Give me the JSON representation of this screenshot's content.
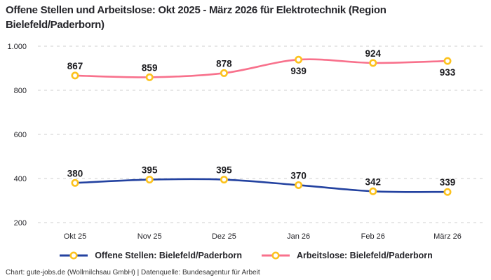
{
  "title": "Offene Stellen und Arbeitslose: Okt 2025 - März 2026 für Elektrotechnik (Region Bielefeld/Paderborn)",
  "footer": "Chart: gute-jobs.de (Wollmilchsau GmbH) | Datenquelle: Bundesagentur für Arbeit",
  "colors": {
    "marker_ring": "#FCC21D",
    "marker_fill": "#FFFFFF",
    "grid": "#CFCFCF",
    "open_positions_line": "#2342A0",
    "unemployed_line": "#F8718C"
  },
  "chart_data": {
    "type": "line",
    "title": "Offene Stellen und Arbeitslose: Okt 2025 - März 2026 für Elektrotechnik (Region Bielefeld/Paderborn)",
    "categories": [
      "Okt 25",
      "Nov 25",
      "Dez 25",
      "Jan 26",
      "Feb 26",
      "März 26"
    ],
    "series": [
      {
        "name": "Offene Stellen: Bielefeld/Paderborn",
        "color": "#2342A0",
        "values": [
          380,
          395,
          395,
          370,
          342,
          339
        ],
        "label_side": [
          "above",
          "above",
          "above",
          "above",
          "above",
          "above"
        ]
      },
      {
        "name": "Arbeitslose: Bielefeld/Paderborn",
        "color": "#F8718C",
        "values": [
          867,
          859,
          878,
          939,
          924,
          933
        ],
        "label_side": [
          "above",
          "above",
          "above",
          "below",
          "above",
          "below"
        ]
      }
    ],
    "xlabel": "",
    "ylabel": "",
    "ylim": [
      200,
      1000
    ],
    "yticks": [
      200,
      400,
      600,
      800,
      1000
    ],
    "ytick_labels": [
      "200",
      "400",
      "600",
      "800",
      "1.000"
    ],
    "grid": "horizontal-dashed",
    "legend_position": "bottom-center",
    "marker": "open-circle-yellow"
  }
}
